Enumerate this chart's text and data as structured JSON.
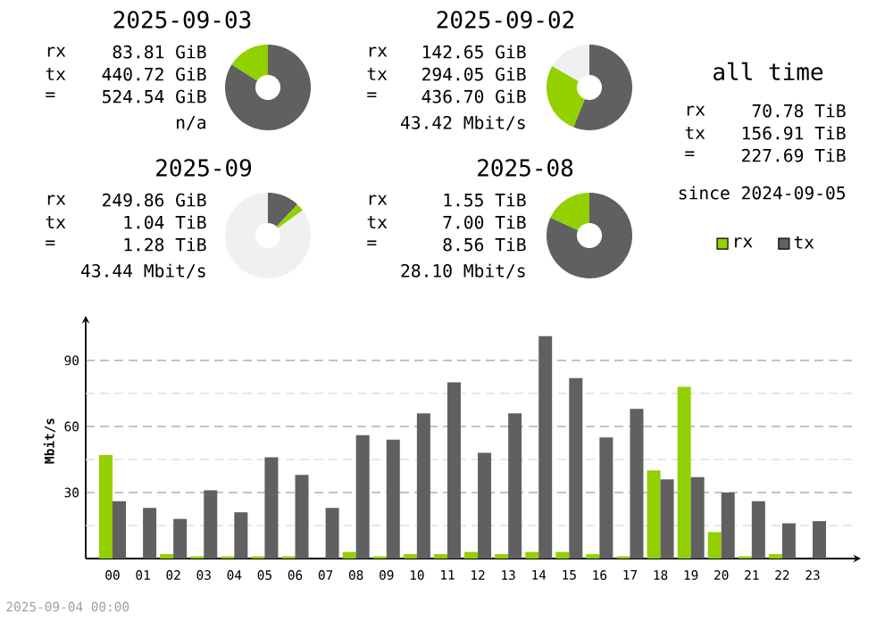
{
  "chart_data": [
    {
      "type": "donut",
      "title": "2025-09-03",
      "categories": [
        null,
        null
      ],
      "values": [
        84.0,
        16.0
      ],
      "colors": [
        "#606060",
        "#92d000"
      ],
      "annotations": [
        "rx",
        "83.81 GiB",
        "tx",
        "440.72 GiB",
        "=",
        "524.54 GiB",
        "n/a"
      ]
    },
    {
      "type": "donut",
      "title": "2025-09-02",
      "categories": [
        null,
        null,
        null
      ],
      "values": [
        56.1,
        27.2,
        16.7
      ],
      "colors": [
        "#606060",
        "#92d000",
        "#f0f0f0"
      ],
      "annotations": [
        "rx",
        "142.65 GiB",
        "tx",
        "294.05 GiB",
        "=",
        "436.70 GiB",
        "43.42 Mbit/s"
      ]
    },
    {
      "type": "other",
      "title": "all time",
      "annotations": [
        "rx",
        "70.78 TiB",
        "tx",
        "156.91 TiB",
        "=",
        "227.69 TiB",
        "since 2024-09-05"
      ]
    },
    {
      "type": "donut",
      "title": "2025-09",
      "categories": [
        null,
        null,
        null
      ],
      "values": [
        12.1,
        2.9,
        85.0
      ],
      "colors": [
        "#606060",
        "#92d000",
        "#f0f0f0"
      ],
      "annotations": [
        "rx",
        "249.86 GiB",
        "tx",
        "1.04 TiB",
        "=",
        "1.28 TiB",
        "43.44 Mbit/s"
      ]
    },
    {
      "type": "donut",
      "title": "2025-08",
      "categories": [
        null,
        null
      ],
      "values": [
        81.9,
        18.1
      ],
      "colors": [
        "#606060",
        "#92d000"
      ],
      "annotations": [
        "rx",
        "1.55 TiB",
        "tx",
        "7.00 TiB",
        "=",
        "8.56 TiB",
        "28.10 Mbit/s"
      ]
    },
    {
      "type": "bar",
      "ylabel": "Mbit/s",
      "categories": [
        "00",
        "01",
        "02",
        "03",
        "04",
        "05",
        "06",
        "07",
        "08",
        "09",
        "10",
        "11",
        "12",
        "13",
        "14",
        "15",
        "16",
        "17",
        "18",
        "19",
        "20",
        "21",
        "22",
        "23"
      ],
      "series": [
        {
          "name": "rx",
          "color": "#92d000",
          "values": [
            47,
            0,
            2,
            1,
            1,
            1,
            1,
            0,
            3,
            1,
            2,
            2,
            3,
            2,
            3,
            3,
            2,
            1,
            40,
            78,
            12,
            1,
            2,
            0
          ]
        },
        {
          "name": "tx",
          "color": "#606060",
          "values": [
            26,
            23,
            18,
            31,
            21,
            46,
            38,
            23,
            56,
            54,
            66,
            80,
            48,
            66,
            101,
            82,
            55,
            68,
            36,
            37,
            30,
            26,
            16,
            17
          ]
        }
      ],
      "ylim": [
        0,
        107
      ],
      "yticks": [
        {
          "value": 15,
          "label": null
        },
        30,
        {
          "value": 45,
          "label": null
        },
        60,
        {
          "value": 75,
          "label": null
        },
        90
      ],
      "grid": "y",
      "legend": "top right",
      "annotations": [
        "2025-09-04 00:00"
      ]
    }
  ]
}
